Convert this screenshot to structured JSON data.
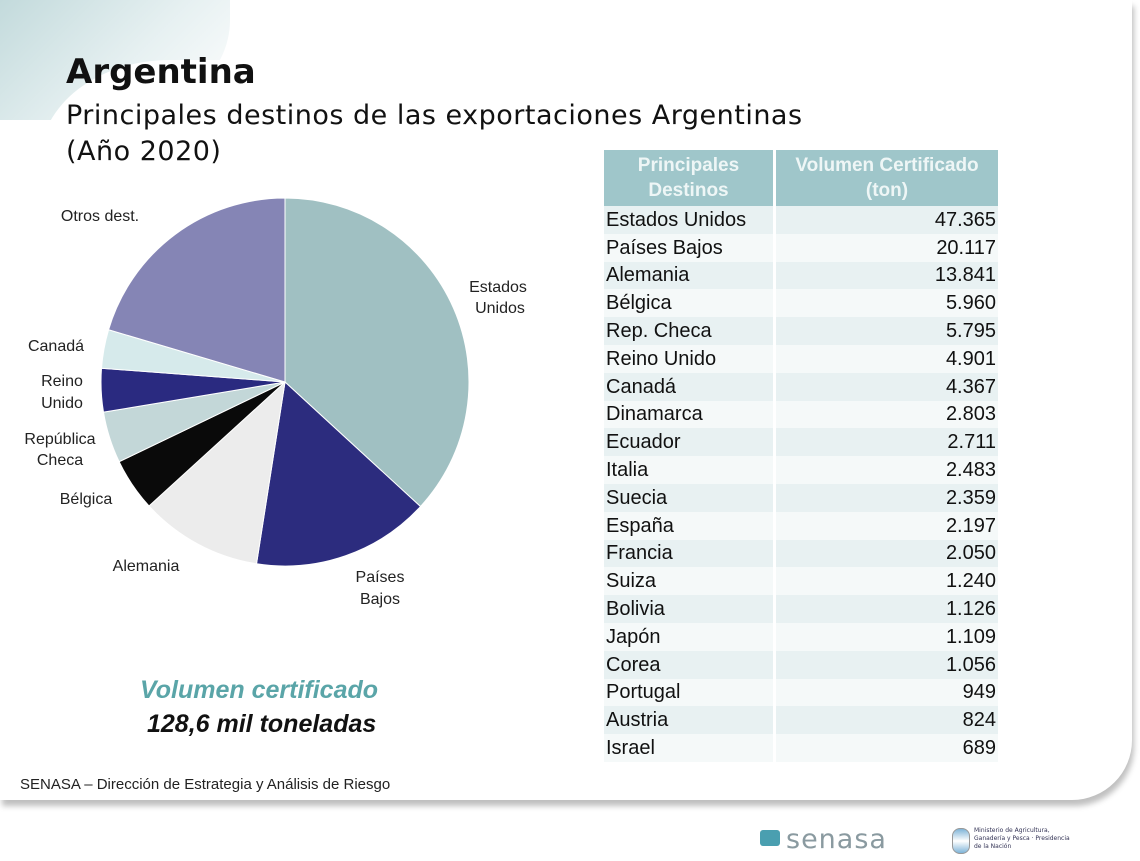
{
  "header": {
    "title": "Argentina",
    "subtitle_line1": "Principales  destinos de las exportaciones Argentinas",
    "subtitle_line2": "(Año 2020)"
  },
  "chart_data": {
    "type": "pie",
    "total": 128600,
    "slices": [
      {
        "label": "Estados Unidos",
        "value": 47365,
        "color": "#a0c0c2"
      },
      {
        "label": "Países Bajos",
        "value": 20117,
        "color": "#2c2c7e"
      },
      {
        "label": "Alemania",
        "value": 13841,
        "color": "#ececec"
      },
      {
        "label": "Bélgica",
        "value": 5960,
        "color": "#0a0a0a"
      },
      {
        "label": "República Checa",
        "value": 5795,
        "color": "#c3d7d8"
      },
      {
        "label": "Reino Unido",
        "value": 4901,
        "color": "#2a2a80"
      },
      {
        "label": "Canadá",
        "value": 4367,
        "color": "#d6eaeb"
      },
      {
        "label": "Otros dest.",
        "color": "#8585b5"
      }
    ],
    "labels": {
      "eu": [
        "Estados",
        "Unidos"
      ],
      "pb": [
        "Países",
        "Bajos"
      ],
      "al": "Alemania",
      "be": "Bélgica",
      "rc": [
        "República",
        "Checa"
      ],
      "ru": [
        "Reino",
        "Unido"
      ],
      "ca": "Canadá",
      "ot": "Otros dest."
    }
  },
  "summary": {
    "line1": "Volumen certificado",
    "line2": "128,6 mil toneladas"
  },
  "table": {
    "headers": [
      "Principales Destinos",
      "Volumen Certificado (ton)"
    ],
    "rows": [
      [
        "Estados Unidos",
        "47.365"
      ],
      [
        "Países Bajos",
        "20.117"
      ],
      [
        "Alemania",
        "13.841"
      ],
      [
        "Bélgica",
        "5.960"
      ],
      [
        "Rep. Checa",
        "5.795"
      ],
      [
        "Reino Unido",
        "4.901"
      ],
      [
        "Canadá",
        "4.367"
      ],
      [
        "Dinamarca",
        "2.803"
      ],
      [
        "Ecuador",
        "2.711"
      ],
      [
        "Italia",
        "2.483"
      ],
      [
        "Suecia",
        "2.359"
      ],
      [
        "España",
        "2.197"
      ],
      [
        "Francia",
        "2.050"
      ],
      [
        "Suiza",
        "1.240"
      ],
      [
        "Bolivia",
        "1.126"
      ],
      [
        "Japón",
        "1.109"
      ],
      [
        "Corea",
        "1.056"
      ],
      [
        "Portugal",
        "949"
      ],
      [
        "Austria",
        "824"
      ],
      [
        "Israel",
        "689"
      ]
    ]
  },
  "footer": {
    "source": "SENASA – Dirección de Estrategia  y Análisis de Riesgo",
    "logo": "senasa",
    "ministry": "Ministerio de Agricultura, Ganadería y Pesca · Presidencia de la Nación"
  }
}
